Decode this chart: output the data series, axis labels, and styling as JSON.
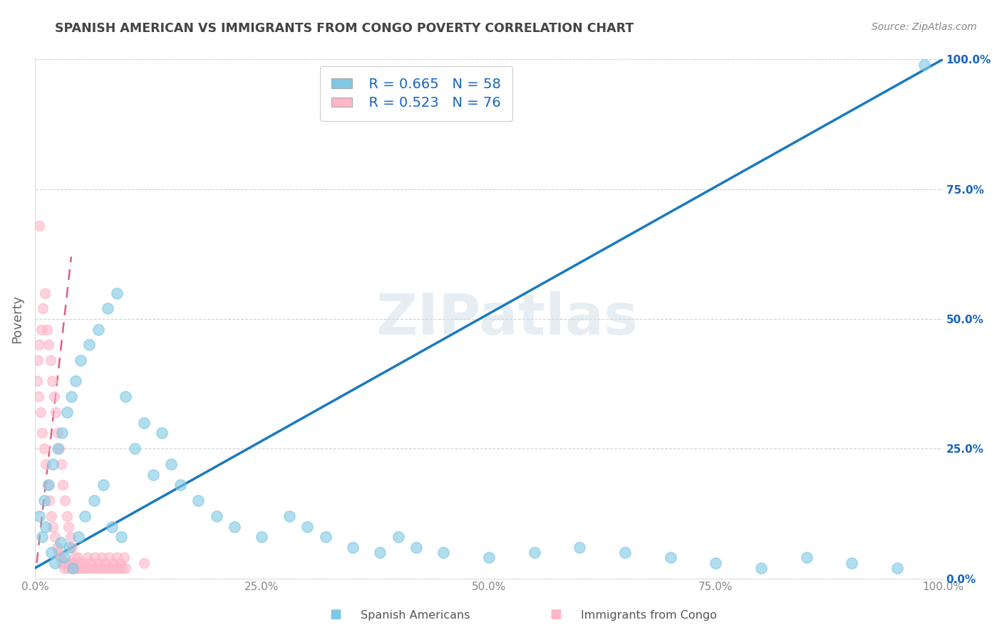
{
  "title": "SPANISH AMERICAN VS IMMIGRANTS FROM CONGO POVERTY CORRELATION CHART",
  "source": "Source: ZipAtlas.com",
  "ylabel": "Poverty",
  "watermark": "ZIPatlas",
  "legend_blue_r": "R = 0.665",
  "legend_blue_n": "N = 58",
  "legend_pink_r": "R = 0.523",
  "legend_pink_n": "N = 76",
  "legend_blue_label": "Spanish Americans",
  "legend_pink_label": "Immigrants from Congo",
  "blue_color": "#7ec8e3",
  "pink_color": "#ffb6c8",
  "trend_blue_color": "#1a7abf",
  "trend_pink_color": "#e06080",
  "background_color": "#ffffff",
  "grid_color": "#cccccc",
  "title_color": "#444444",
  "legend_text_color": "#1565C0",
  "right_tick_color": "#1565C0",
  "xlim": [
    0.0,
    1.0
  ],
  "ylim": [
    0.0,
    1.0
  ],
  "xtick_vals": [
    0.0,
    0.25,
    0.5,
    0.75,
    1.0
  ],
  "xtick_labels": [
    "0.0%",
    "25.0%",
    "50.0%",
    "75.0%",
    "100.0%"
  ],
  "ytick_vals": [
    0.0,
    0.25,
    0.5,
    0.75,
    1.0
  ],
  "ytick_labels": [
    "",
    "",
    "",
    "",
    ""
  ],
  "right_ytick_labels": [
    "0.0%",
    "25.0%",
    "50.0%",
    "75.0%",
    "100.0%"
  ],
  "blue_scatter_x": [
    0.005,
    0.008,
    0.01,
    0.012,
    0.015,
    0.018,
    0.02,
    0.022,
    0.025,
    0.028,
    0.03,
    0.032,
    0.035,
    0.038,
    0.04,
    0.042,
    0.045,
    0.048,
    0.05,
    0.055,
    0.06,
    0.065,
    0.07,
    0.075,
    0.08,
    0.085,
    0.09,
    0.095,
    0.1,
    0.11,
    0.12,
    0.13,
    0.14,
    0.15,
    0.16,
    0.18,
    0.2,
    0.22,
    0.25,
    0.28,
    0.3,
    0.32,
    0.35,
    0.38,
    0.4,
    0.42,
    0.45,
    0.5,
    0.55,
    0.6,
    0.65,
    0.7,
    0.75,
    0.8,
    0.85,
    0.9,
    0.95,
    0.98
  ],
  "blue_scatter_y": [
    0.12,
    0.08,
    0.15,
    0.1,
    0.18,
    0.05,
    0.22,
    0.03,
    0.25,
    0.07,
    0.28,
    0.04,
    0.32,
    0.06,
    0.35,
    0.02,
    0.38,
    0.08,
    0.42,
    0.12,
    0.45,
    0.15,
    0.48,
    0.18,
    0.52,
    0.1,
    0.55,
    0.08,
    0.35,
    0.25,
    0.3,
    0.2,
    0.28,
    0.22,
    0.18,
    0.15,
    0.12,
    0.1,
    0.08,
    0.12,
    0.1,
    0.08,
    0.06,
    0.05,
    0.08,
    0.06,
    0.05,
    0.04,
    0.05,
    0.06,
    0.05,
    0.04,
    0.03,
    0.02,
    0.04,
    0.03,
    0.02,
    0.99
  ],
  "pink_scatter_x": [
    0.002,
    0.003,
    0.004,
    0.005,
    0.006,
    0.007,
    0.008,
    0.009,
    0.01,
    0.011,
    0.012,
    0.013,
    0.014,
    0.015,
    0.016,
    0.017,
    0.018,
    0.019,
    0.02,
    0.021,
    0.022,
    0.023,
    0.024,
    0.025,
    0.026,
    0.027,
    0.028,
    0.029,
    0.03,
    0.031,
    0.032,
    0.033,
    0.034,
    0.035,
    0.036,
    0.037,
    0.038,
    0.039,
    0.04,
    0.041,
    0.042,
    0.043,
    0.044,
    0.045,
    0.046,
    0.047,
    0.048,
    0.049,
    0.05,
    0.052,
    0.054,
    0.056,
    0.058,
    0.06,
    0.062,
    0.064,
    0.066,
    0.068,
    0.07,
    0.072,
    0.074,
    0.076,
    0.078,
    0.08,
    0.082,
    0.084,
    0.086,
    0.088,
    0.09,
    0.092,
    0.094,
    0.096,
    0.098,
    0.1,
    0.12,
    0.005
  ],
  "pink_scatter_y": [
    0.38,
    0.42,
    0.35,
    0.45,
    0.32,
    0.48,
    0.28,
    0.52,
    0.25,
    0.55,
    0.22,
    0.48,
    0.18,
    0.45,
    0.15,
    0.42,
    0.12,
    0.38,
    0.1,
    0.35,
    0.08,
    0.32,
    0.06,
    0.28,
    0.05,
    0.25,
    0.04,
    0.22,
    0.03,
    0.18,
    0.02,
    0.15,
    0.03,
    0.12,
    0.02,
    0.1,
    0.03,
    0.08,
    0.02,
    0.06,
    0.03,
    0.02,
    0.04,
    0.03,
    0.02,
    0.04,
    0.03,
    0.02,
    0.03,
    0.02,
    0.03,
    0.02,
    0.04,
    0.02,
    0.03,
    0.02,
    0.04,
    0.02,
    0.03,
    0.02,
    0.04,
    0.02,
    0.03,
    0.02,
    0.04,
    0.02,
    0.03,
    0.02,
    0.04,
    0.02,
    0.03,
    0.02,
    0.04,
    0.02,
    0.03,
    0.68
  ],
  "blue_trend_x0": 0.0,
  "blue_trend_y0": 0.02,
  "blue_trend_x1": 1.0,
  "blue_trend_y1": 1.0,
  "pink_trend_x0": 0.002,
  "pink_trend_y0": 0.03,
  "pink_trend_x1": 0.04,
  "pink_trend_y1": 0.62
}
